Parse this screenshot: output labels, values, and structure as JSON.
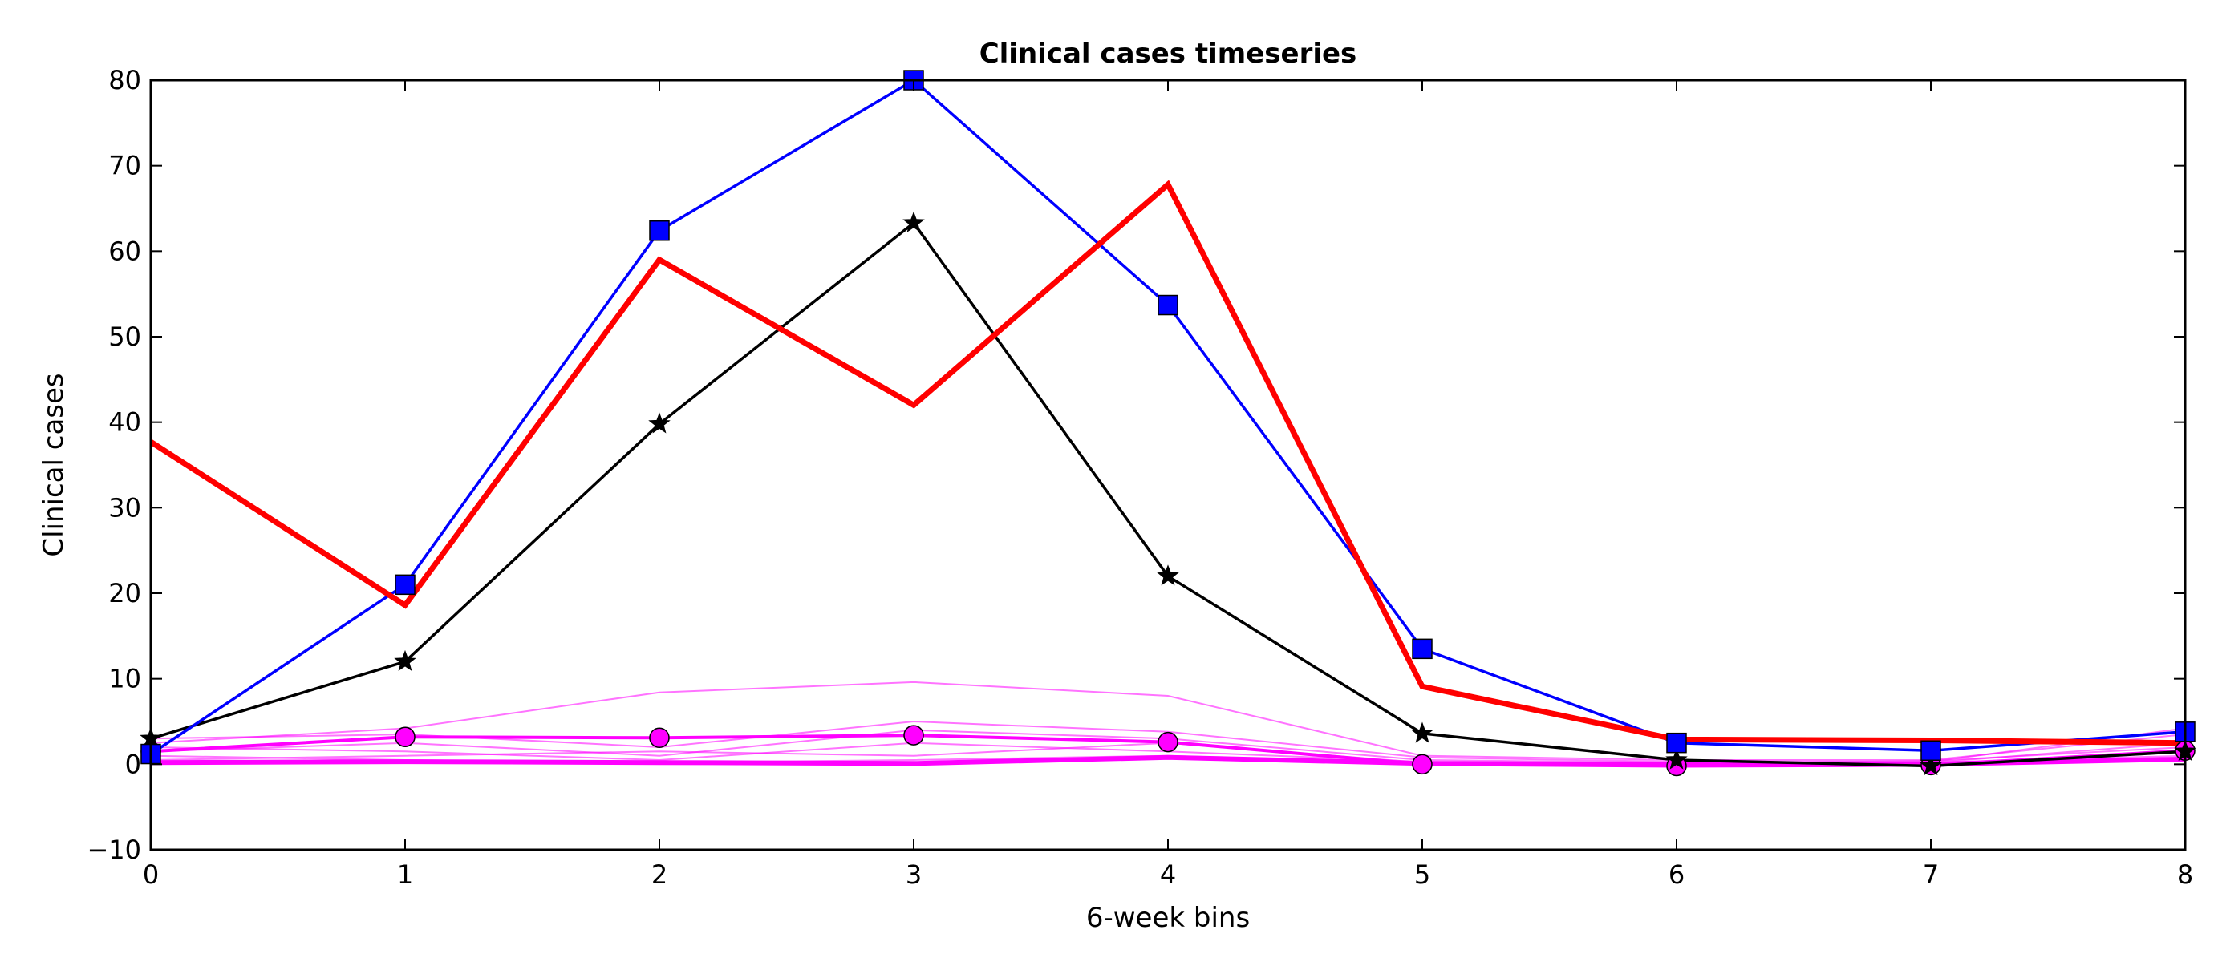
{
  "chart_data": {
    "type": "line",
    "title": "Clinical cases timeseries",
    "xlabel": "6-week bins",
    "ylabel": "Clinical cases",
    "xlim": [
      0,
      8
    ],
    "ylim": [
      -10,
      80
    ],
    "x": [
      0,
      1,
      2,
      3,
      4,
      5,
      6,
      7,
      8
    ],
    "xticks": [
      "0",
      "1",
      "2",
      "3",
      "4",
      "5",
      "6",
      "7",
      "8"
    ],
    "yticks": [
      "−10",
      "0",
      "10",
      "20",
      "30",
      "40",
      "50",
      "60",
      "70",
      "80"
    ],
    "grid": false,
    "legend": "none",
    "series": [
      {
        "style": "faint",
        "color": "#ff00ff",
        "values": [
          2.5,
          4.2,
          8.4,
          9.6,
          8.0,
          1.0,
          0.5,
          0.5,
          3.5
        ]
      },
      {
        "style": "faint",
        "color": "#ff00ff",
        "values": [
          3.0,
          3.5,
          2.0,
          5.0,
          3.8,
          0.8,
          0.3,
          0.3,
          4.2
        ]
      },
      {
        "style": "faint",
        "color": "#ff00ff",
        "values": [
          1.5,
          2.5,
          1.0,
          4.0,
          3.0,
          0.5,
          0.2,
          0.2,
          2.5
        ]
      },
      {
        "style": "faint",
        "color": "#ff00ff",
        "values": [
          2.0,
          1.5,
          0.5,
          2.5,
          1.5,
          0.3,
          0.1,
          0.1,
          1.5
        ]
      },
      {
        "style": "faint",
        "color": "#ff00ff",
        "values": [
          0.5,
          1.0,
          1.5,
          1.0,
          2.5,
          0.2,
          0.1,
          0.4,
          2.0
        ]
      },
      {
        "style": "faint",
        "color": "#ff00ff",
        "values": [
          1.0,
          0.5,
          0.2,
          0.5,
          1.0,
          0.1,
          0.0,
          0.2,
          1.0
        ]
      },
      {
        "style": "thick",
        "color": "#ff00ff",
        "values": [
          0.2,
          0.3,
          0.2,
          0.1,
          0.8,
          0.1,
          0.0,
          0.0,
          0.6
        ]
      },
      {
        "style": "circle",
        "color": "#ff00ff",
        "values": [
          1.5,
          3.2,
          3.1,
          3.4,
          2.6,
          0.0,
          -0.2,
          -0.1,
          1.6
        ]
      },
      {
        "style": "star",
        "color": "#000000",
        "values": [
          3.0,
          12.0,
          39.8,
          63.3,
          22.0,
          3.6,
          0.5,
          -0.2,
          1.5
        ]
      },
      {
        "style": "square",
        "color": "#0000ff",
        "values": [
          1.2,
          21.0,
          62.4,
          80.0,
          53.7,
          13.5,
          2.5,
          1.6,
          3.8
        ]
      },
      {
        "style": "bold",
        "color": "#ff0000",
        "values": [
          37.7,
          18.6,
          59.0,
          42.0,
          67.8,
          9.1,
          2.9,
          2.8,
          2.5
        ]
      }
    ]
  }
}
